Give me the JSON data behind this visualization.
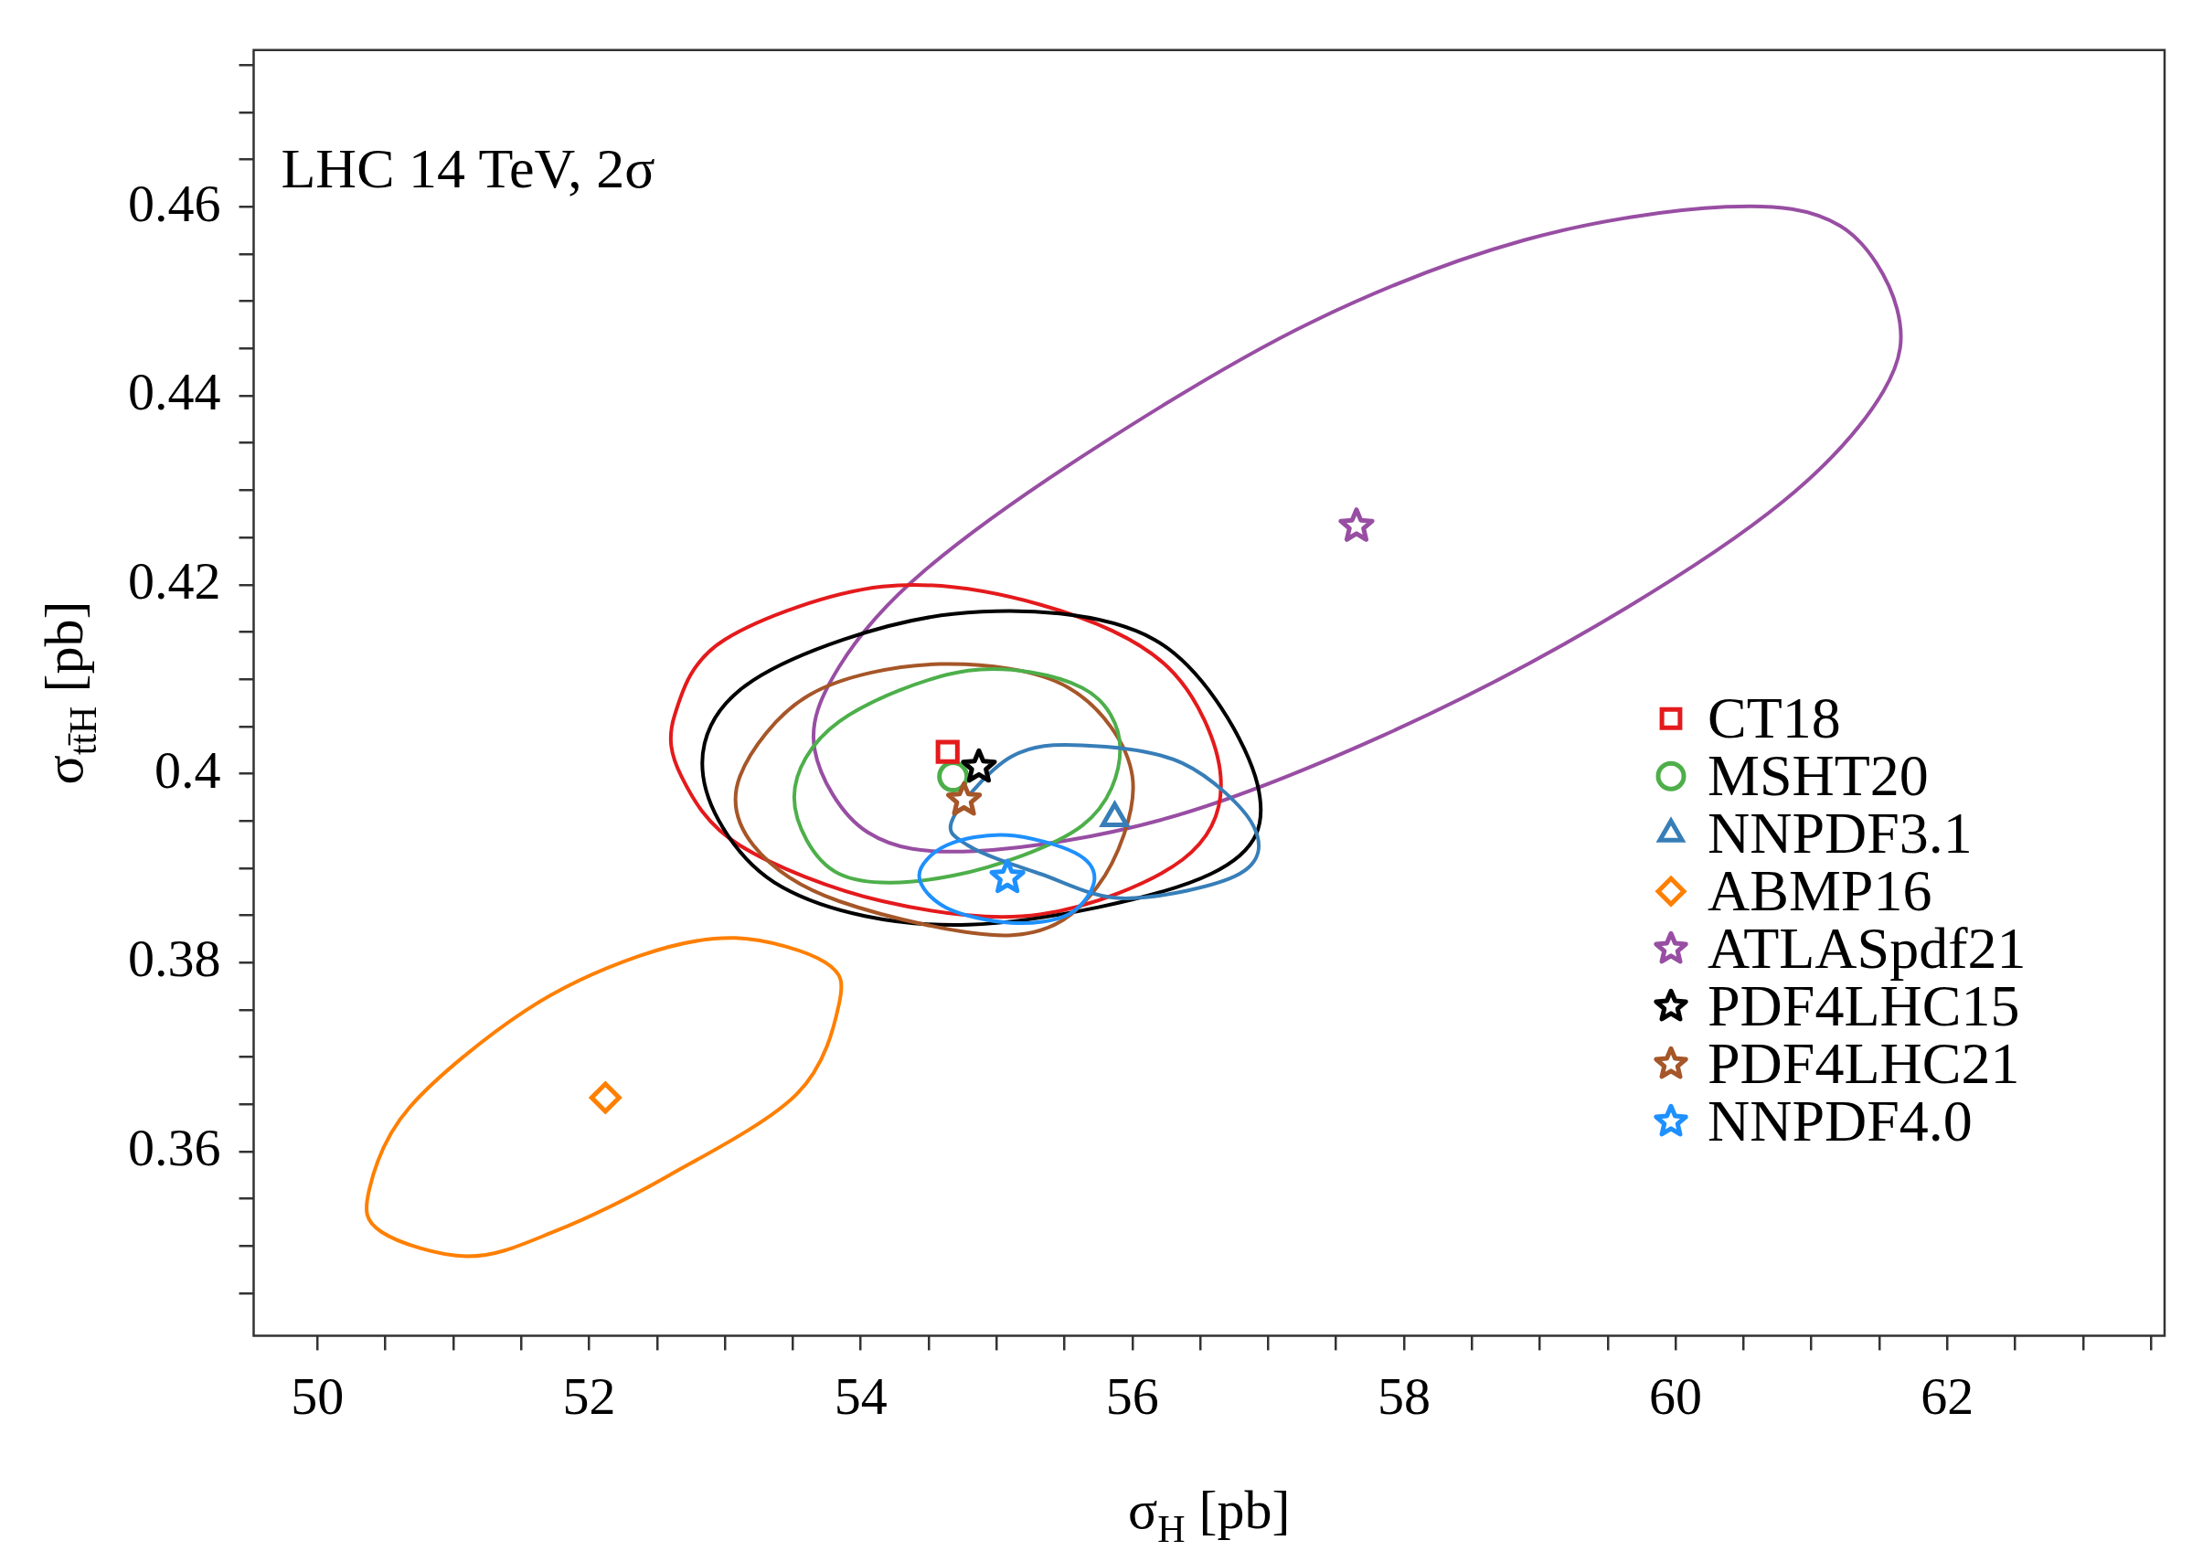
{
  "chart_data": {
    "type": "scatter",
    "xlabel": "σ$_{H}$ [pb]",
    "ylabel": "σ$_{tt̄H}$ [pb]",
    "annotations": [
      "LHC 14 TeV, 2σ"
    ],
    "xlim": [
      49.53,
      63.6
    ],
    "ylim": [
      0.3405,
      0.4766
    ],
    "xticks": [
      50,
      {
        "value": 50.5,
        "label": null
      },
      {
        "value": 51,
        "label": null
      },
      {
        "value": 51.5,
        "label": null
      },
      52,
      {
        "value": 52.5,
        "label": null
      },
      {
        "value": 53,
        "label": null
      },
      {
        "value": 53.5,
        "label": null
      },
      54,
      {
        "value": 54.5,
        "label": null
      },
      {
        "value": 55,
        "label": null
      },
      {
        "value": 55.5,
        "label": null
      },
      56,
      {
        "value": 56.5,
        "label": null
      },
      {
        "value": 57,
        "label": null
      },
      {
        "value": 57.5,
        "label": null
      },
      58,
      {
        "value": 58.5,
        "label": null
      },
      {
        "value": 59,
        "label": null
      },
      {
        "value": 59.5,
        "label": null
      },
      60,
      {
        "value": 60.5,
        "label": null
      },
      {
        "value": 61,
        "label": null
      },
      {
        "value": 61.5,
        "label": null
      },
      62,
      {
        "value": 62.5,
        "label": null
      },
      {
        "value": 63,
        "label": null
      },
      {
        "value": 63.5,
        "label": null
      }
    ],
    "yticks": [
      {
        "value": 0.345,
        "label": null
      },
      {
        "value": 0.35,
        "label": null
      },
      {
        "value": 0.355,
        "label": null
      },
      0.36,
      {
        "value": 0.365,
        "label": null
      },
      {
        "value": 0.37,
        "label": null
      },
      {
        "value": 0.375,
        "label": null
      },
      0.38,
      {
        "value": 0.385,
        "label": null
      },
      {
        "value": 0.39,
        "label": null
      },
      {
        "value": 0.395,
        "label": null
      },
      0.4,
      {
        "value": 0.405,
        "label": null
      },
      {
        "value": 0.41,
        "label": null
      },
      {
        "value": 0.415,
        "label": null
      },
      0.42,
      {
        "value": 0.425,
        "label": null
      },
      {
        "value": 0.43,
        "label": null
      },
      {
        "value": 0.435,
        "label": null
      },
      0.44,
      {
        "value": 0.445,
        "label": null
      },
      {
        "value": 0.45,
        "label": null
      },
      {
        "value": 0.455,
        "label": null
      },
      0.46,
      {
        "value": 0.465,
        "label": null
      },
      {
        "value": 0.47,
        "label": null
      },
      {
        "value": 0.475,
        "label": null
      }
    ],
    "grid": false,
    "legend": "right",
    "series": [
      {
        "type": "scatter",
        "name": "CT18",
        "color": "#e41a1c",
        "marker": "square",
        "x": [
          54.64
        ],
        "values": [
          0.4023
        ]
      },
      {
        "type": "scatter",
        "name": "MSHT20",
        "color": "#4daf4a",
        "marker": "circle",
        "x": [
          54.68
        ],
        "values": [
          0.3997
        ]
      },
      {
        "type": "scatter",
        "name": "NNPDF3.1",
        "color": "#377eb8",
        "marker": "triangle",
        "x": [
          55.87
        ],
        "values": [
          0.3953
        ]
      },
      {
        "type": "scatter",
        "name": "ABMP16",
        "color": "#ff7f00",
        "marker": "diamond",
        "x": [
          52.12
        ],
        "values": [
          0.3657
        ]
      },
      {
        "type": "scatter",
        "name": "ATLASpdf21",
        "color": "#984ea3",
        "marker": "star",
        "x": [
          57.65
        ],
        "values": [
          0.4262
        ]
      },
      {
        "type": "scatter",
        "name": "PDF4LHC15",
        "color": "#000000",
        "marker": "star",
        "x": [
          54.87
        ],
        "values": [
          0.4007
        ]
      },
      {
        "type": "scatter",
        "name": "PDF4LHC21",
        "color": "#a65628",
        "marker": "star",
        "x": [
          54.76
        ],
        "values": [
          0.3972
        ]
      },
      {
        "type": "scatter",
        "name": "NNPDF4.0",
        "color": "#1e90ff",
        "marker": "star",
        "x": [
          55.08
        ],
        "values": [
          0.389
        ]
      }
    ]
  }
}
